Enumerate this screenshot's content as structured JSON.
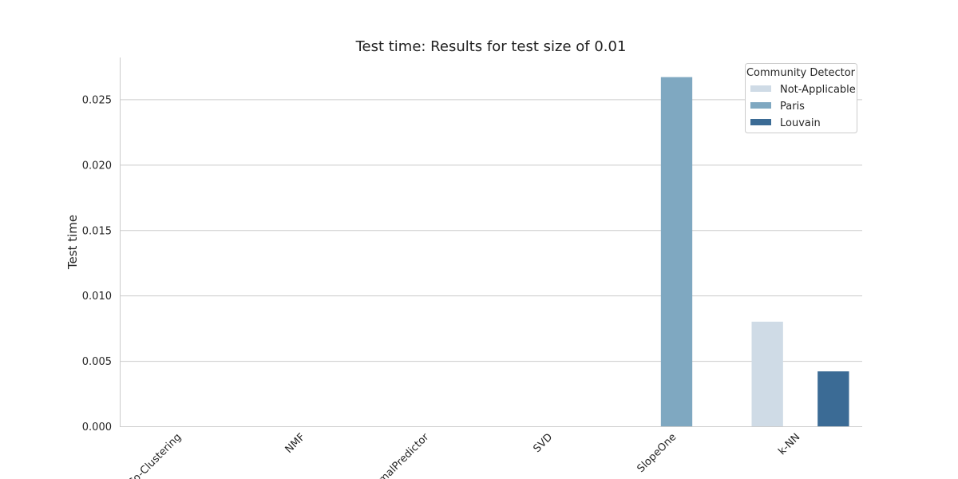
{
  "chart_data": {
    "type": "bar",
    "title": "Test time: Results for test size of 0.01",
    "xlabel": "",
    "ylabel": "Test time",
    "categories": [
      "Co-Clustering",
      "NMF",
      "NormalPredictor",
      "SVD",
      "SlopeOne",
      "k-NN"
    ],
    "series": [
      {
        "name": "Not-Applicable",
        "color": "#cfdbe6",
        "values": [
          0,
          0,
          0,
          0,
          0,
          0.008
        ]
      },
      {
        "name": "Paris",
        "color": "#7fa8c1",
        "values": [
          0,
          0,
          0,
          0,
          0.0267,
          0
        ]
      },
      {
        "name": "Louvain",
        "color": "#3b6b95",
        "values": [
          0,
          0,
          0,
          0,
          0,
          0.0042
        ]
      }
    ],
    "ylim": [
      0,
      0.0282
    ],
    "yticks": [
      "0.000",
      "0.005",
      "0.010",
      "0.015",
      "0.020",
      "0.025"
    ],
    "grid": "horizontal",
    "legend": {
      "title": "Community Detector",
      "placement": "top-right"
    }
  }
}
